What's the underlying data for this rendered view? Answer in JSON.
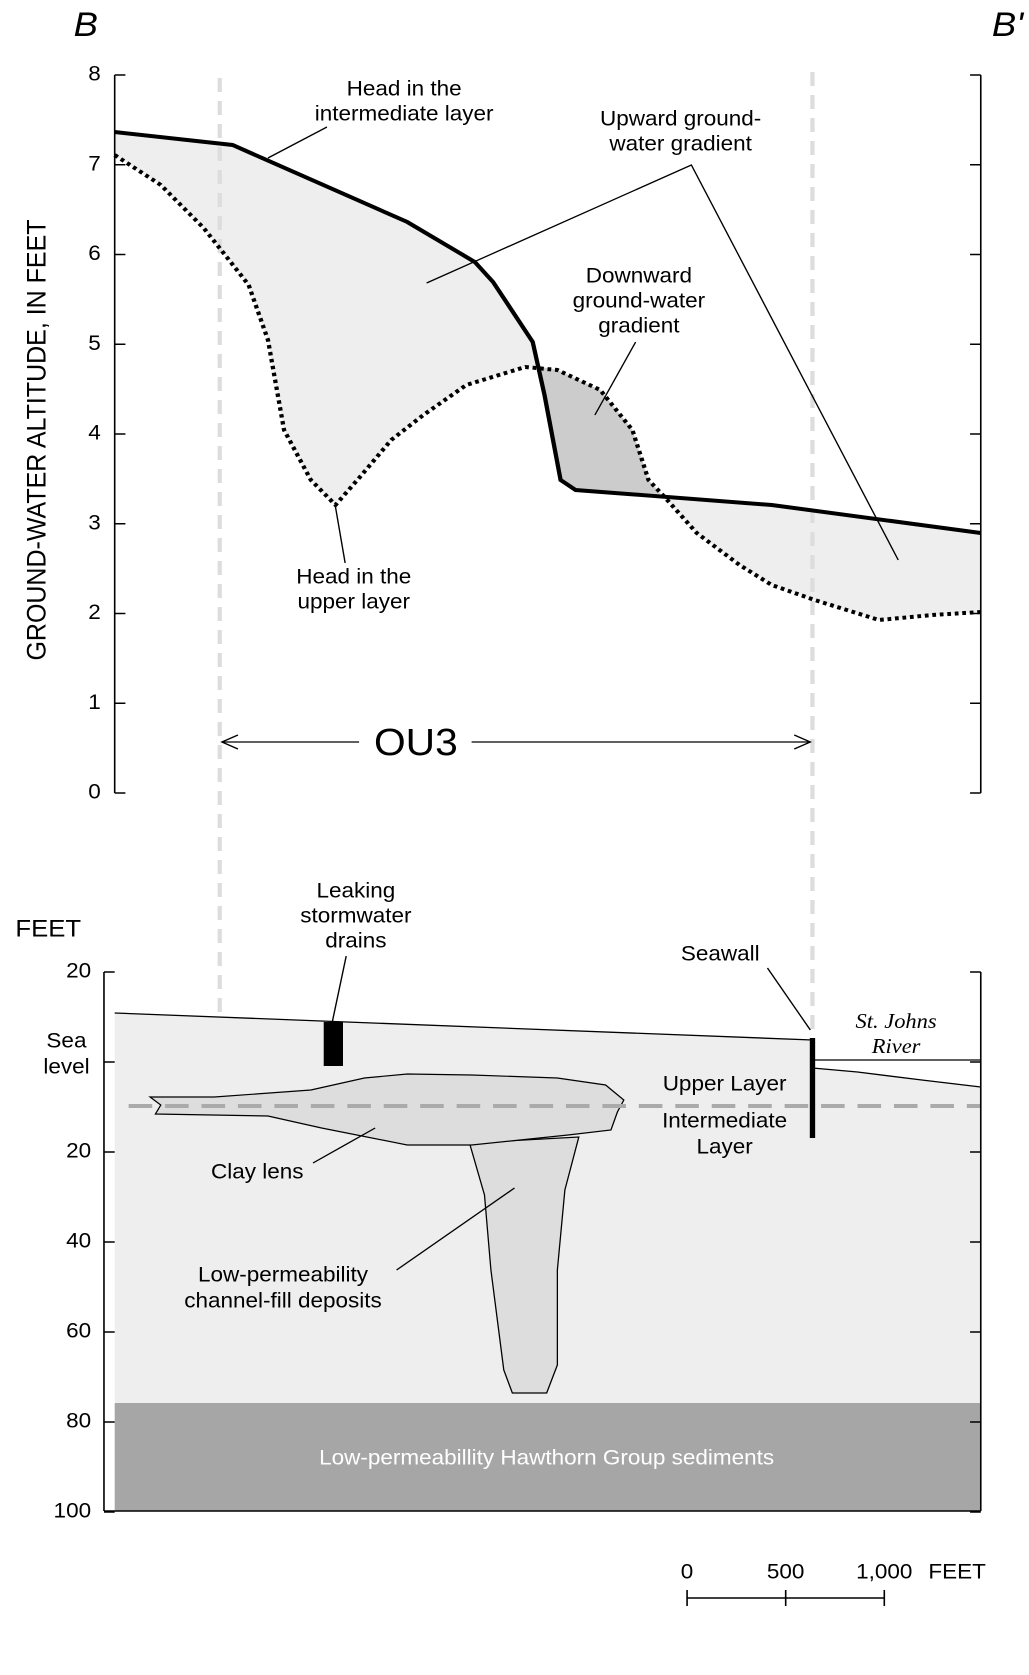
{
  "section": {
    "start": "B",
    "end": "B'"
  },
  "upper_panel": {
    "axis_label": "GROUND-WATER ALTITUDE, IN FEET",
    "ticks": [
      0,
      1,
      2,
      3,
      4,
      5,
      6,
      7,
      8
    ],
    "intermediate_head_label": [
      "Head in the",
      "intermediate layer"
    ],
    "upper_head_label": [
      "Head in the",
      "upper layer"
    ],
    "upward_label": [
      "Upward ground-",
      "water gradient"
    ],
    "downward_label": [
      "Downward",
      "ground-water",
      "gradient"
    ],
    "zone_label": "OU3"
  },
  "lower_panel": {
    "axis_label": "FEET",
    "ticks_above": [
      20
    ],
    "sea_level_label": [
      "Sea",
      "level"
    ],
    "ticks_below": [
      20,
      40,
      60,
      80,
      100
    ],
    "drains_label": [
      "Leaking",
      "stormwater",
      "drains"
    ],
    "seawall_label": "Seawall",
    "river_label": [
      "St. Johns",
      "River"
    ],
    "upper_layer_label": "Upper Layer",
    "intermediate_layer_label": [
      "Intermediate",
      "Layer"
    ],
    "clay_label": "Clay lens",
    "channel_label": [
      "Low-permeability",
      "channel-fill deposits"
    ],
    "hawthorn_label": "Low-permeabillity Hawthorn Group sediments"
  },
  "scale_bar": {
    "ticks": [
      "0",
      "500",
      "1,000"
    ],
    "unit": "FEET"
  }
}
